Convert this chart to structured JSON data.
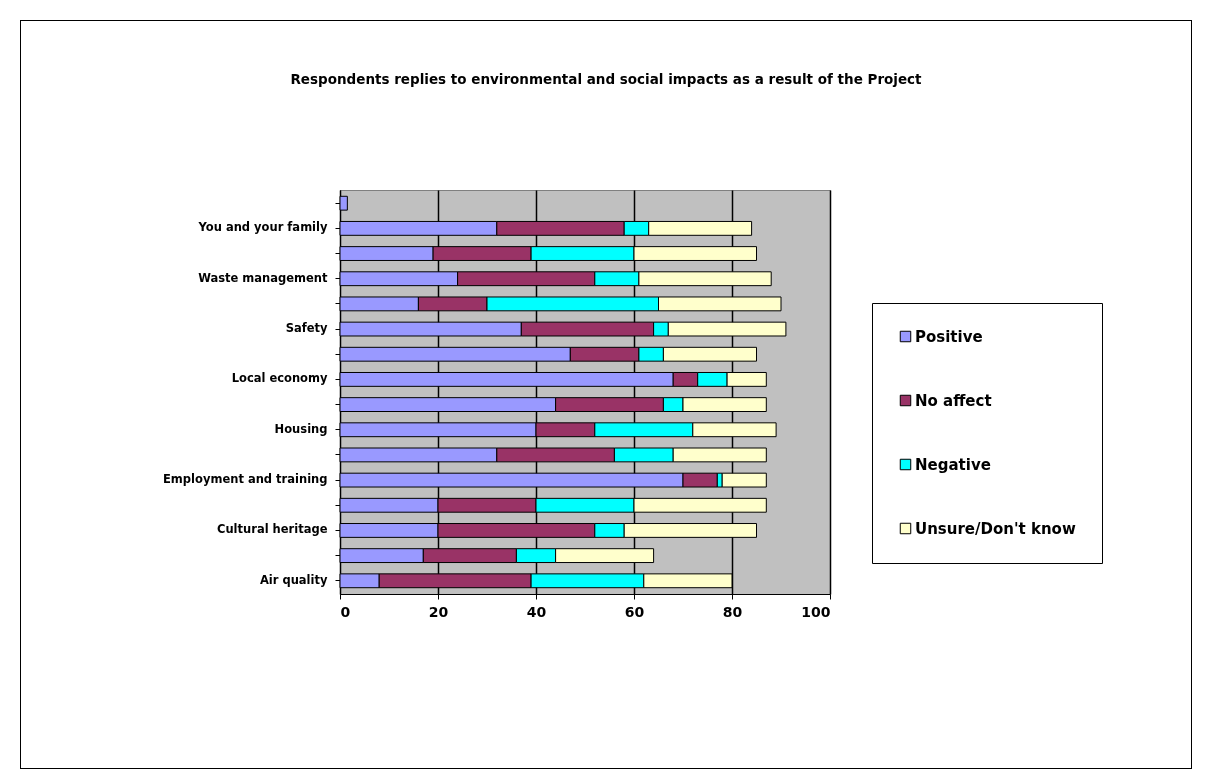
{
  "chart_data": {
    "type": "bar",
    "title": "Respondents replies to environmental and social impacts as a result of the Project",
    "orientation": "horizontal",
    "stacked": true,
    "categories": [
      null,
      "You and your family",
      null,
      "Waste management",
      null,
      "Safety",
      null,
      "Local economy",
      null,
      "Housing",
      null,
      "Employment and training",
      null,
      "Cultural heritage",
      null,
      "Air quality"
    ],
    "series": [
      {
        "name": "Positive",
        "color": "#9999ff",
        "values": [
          1.5,
          32,
          19,
          24,
          16,
          37,
          47,
          68,
          44,
          40,
          32,
          70,
          20,
          20,
          17,
          8
        ]
      },
      {
        "name": "No affect",
        "color": "#993366",
        "values": [
          null,
          26,
          20,
          28,
          14,
          27,
          14,
          5,
          22,
          12,
          24,
          7,
          20,
          32,
          19,
          31
        ]
      },
      {
        "name": "Negative",
        "color": "#00ffff",
        "values": [
          null,
          5,
          21,
          9,
          35,
          3,
          5,
          6,
          4,
          20,
          12,
          1,
          20,
          6,
          8,
          23
        ]
      },
      {
        "name": "Unsure/Don't know",
        "color": "#ffffcc",
        "values": [
          null,
          21,
          25,
          27,
          25,
          24,
          19,
          8,
          17,
          17,
          19,
          9,
          27,
          27,
          20,
          18
        ]
      }
    ],
    "xlim": [
      0,
      100
    ],
    "xticks": [
      0,
      20,
      40,
      60,
      80,
      100
    ],
    "grid": "x",
    "legend": "right"
  }
}
